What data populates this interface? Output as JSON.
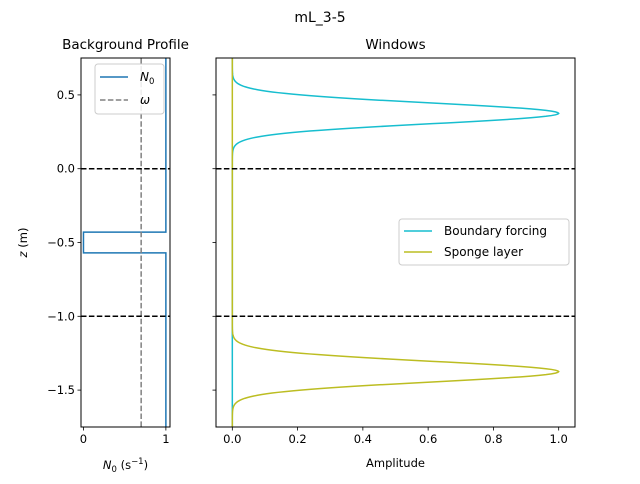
{
  "figure_title": "mL_3-5",
  "chart_data": [
    {
      "type": "line",
      "title": "Background Profile",
      "xlabel": "N0 (s⁻¹)",
      "ylabel": "z (m)",
      "xlim": [
        -0.03,
        1.05
      ],
      "ylim": [
        -1.75,
        0.75
      ],
      "xticks": [
        0,
        1
      ],
      "yticks": [
        -1.5,
        -1.0,
        -0.5,
        0.0,
        0.5
      ],
      "legend": {
        "position": "top-right",
        "entries": [
          "N0",
          "ω"
        ]
      },
      "series": [
        {
          "name": "N0",
          "color": "#1f77b4",
          "style": "solid",
          "x": [
            1.0,
            1.0,
            0.0,
            0.0,
            1.0,
            1.0
          ],
          "y": [
            0.75,
            -0.43,
            -0.43,
            -0.57,
            -0.57,
            -1.75
          ]
        },
        {
          "name": "ω",
          "color": "#808080",
          "style": "dashed",
          "x": [
            0.7,
            0.7
          ],
          "y": [
            0.75,
            -1.75
          ]
        }
      ],
      "hlines": [
        0.0,
        -1.0
      ]
    },
    {
      "type": "line",
      "title": "Windows",
      "xlabel": "Amplitude",
      "ylabel": "",
      "xlim": [
        -0.05,
        1.05
      ],
      "ylim": [
        -1.75,
        0.75
      ],
      "xticks": [
        0.0,
        0.2,
        0.4,
        0.6,
        0.8,
        1.0
      ],
      "legend": {
        "position": "center-right",
        "entries": [
          "Boundary forcing",
          "Sponge layer"
        ]
      },
      "series": [
        {
          "name": "Boundary forcing",
          "color": "#17becf",
          "shape": "gaussian",
          "center": 0.375,
          "width": 0.1
        },
        {
          "name": "Sponge layer",
          "color": "#bcbd22",
          "shape": "gaussian",
          "center": -1.375,
          "width": 0.1
        }
      ],
      "hlines": [
        0.0,
        -1.0
      ]
    }
  ]
}
